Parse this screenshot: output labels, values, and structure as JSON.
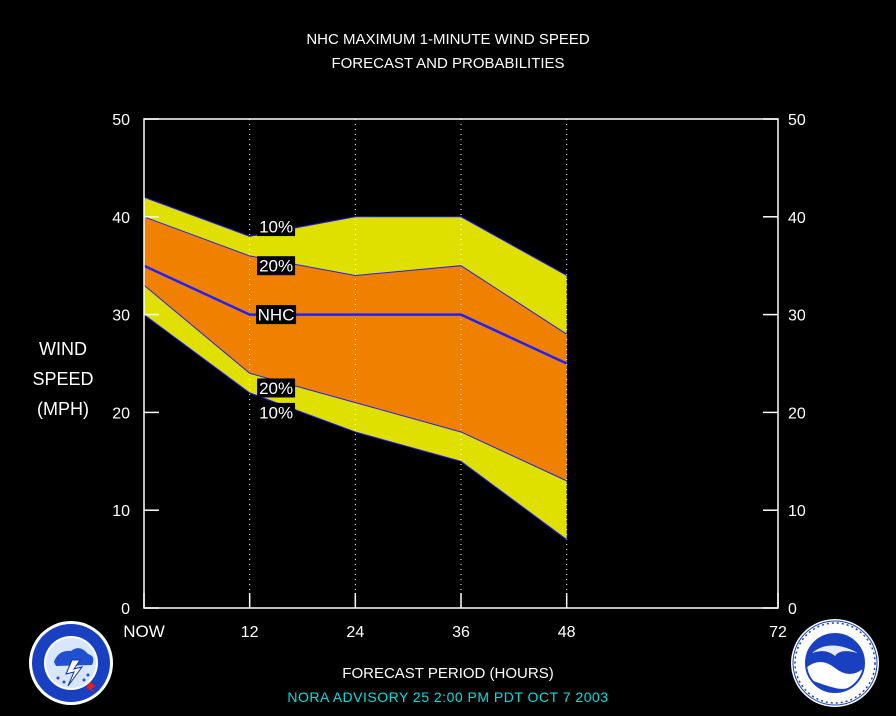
{
  "header": {
    "title_line1": "NHC MAXIMUM 1-MINUTE WIND SPEED",
    "title_line2": "FORECAST AND PROBABILITIES"
  },
  "y_axis_label": {
    "line1": "WIND",
    "line2": "SPEED",
    "line3": "(MPH)"
  },
  "x_axis_label": "FORECAST PERIOD (HOURS)",
  "advisory": "NORA   ADVISORY  25 2:00  PM  PDT  OCT  7  2003",
  "logos": {
    "left": {
      "name": "NATIONAL WEATHER SERVICE",
      "icon": "nws-logo"
    },
    "right": {
      "name": "NOAA",
      "icon": "noaa-logo"
    }
  },
  "colors": {
    "background": "#000000",
    "outer_band": "#e0e000",
    "inner_band": "#f08000",
    "nhc_line": "#2020ff",
    "axis": "#ffffff",
    "advisory_text": "#00e0e0"
  },
  "chart_data": {
    "type": "area",
    "title": "NHC MAXIMUM 1-MINUTE WIND SPEED FORECAST AND PROBABILITIES",
    "xlabel": "FORECAST PERIOD (HOURS)",
    "ylabel": "WIND SPEED (MPH)",
    "xlim": [
      0,
      72
    ],
    "ylim": [
      0,
      50
    ],
    "x_ticks": [
      0,
      12,
      24,
      36,
      48,
      72
    ],
    "x_tick_labels": [
      "NOW",
      "12",
      "24",
      "36",
      "48",
      "72"
    ],
    "y_ticks": [
      0,
      10,
      20,
      30,
      40,
      50
    ],
    "y_tick_labels": [
      "0",
      "10",
      "20",
      "30",
      "40",
      "50"
    ],
    "grid": "dotted vertical at 12, 24, 36, 48",
    "x": [
      0,
      12,
      24,
      36,
      48
    ],
    "series": [
      {
        "name": "10%",
        "values": [
          42,
          38,
          40,
          40,
          34
        ]
      },
      {
        "name": "20%",
        "values": [
          40,
          36,
          34,
          35,
          28
        ]
      },
      {
        "name": "NHC",
        "values": [
          35,
          30,
          30,
          30,
          25
        ]
      },
      {
        "name": "20%",
        "values": [
          33,
          24,
          21,
          18,
          13
        ]
      },
      {
        "name": "10%",
        "values": [
          30,
          22,
          18,
          15,
          7
        ]
      }
    ],
    "band_labels": [
      {
        "text": "10%",
        "x": 15,
        "y": 39
      },
      {
        "text": "20%",
        "x": 15,
        "y": 35
      },
      {
        "text": "NHC",
        "x": 15,
        "y": 30
      },
      {
        "text": "20%",
        "x": 15,
        "y": 22.5
      },
      {
        "text": "10%",
        "x": 15,
        "y": 20
      }
    ]
  }
}
